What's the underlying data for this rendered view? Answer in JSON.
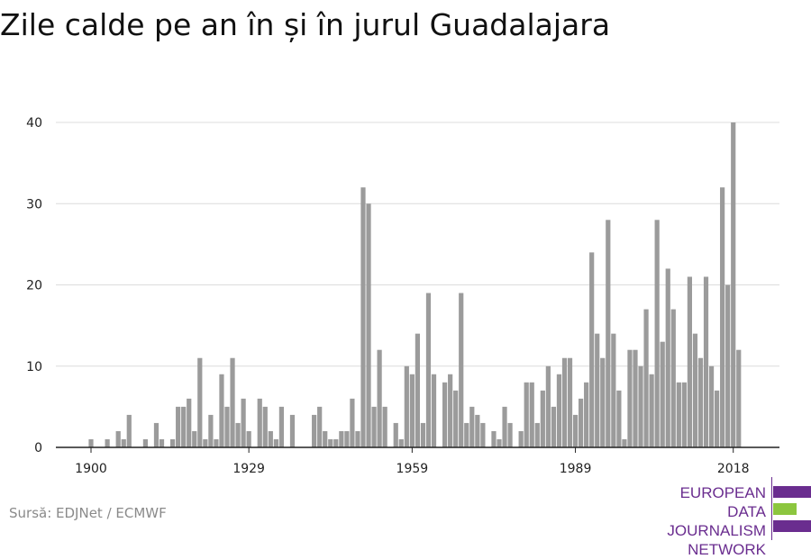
{
  "title": "Zile calde pe an în și în jurul Guadalajara",
  "source": "Sursă: EDJNet / ECMWF",
  "logo": {
    "lines": [
      "EUROPEAN",
      "DATA JOURNALISM",
      "NETWORK"
    ]
  },
  "colors": {
    "bar": "#9b9b9b",
    "grid": "#dcdcdc",
    "axis": "#222222",
    "brand": "#6a2d8f",
    "brand_accent": "#8cc63f"
  },
  "chart_data": {
    "type": "bar",
    "title": "Zile calde pe an în și în jurul Guadalajara",
    "xlabel": "",
    "ylabel": "",
    "ylim": [
      0,
      40
    ],
    "yticks": [
      0,
      10,
      20,
      30,
      40
    ],
    "xticks": [
      1900,
      1929,
      1959,
      1989,
      2018
    ],
    "grid": true,
    "x": [
      1900,
      1901,
      1902,
      1903,
      1904,
      1905,
      1906,
      1907,
      1908,
      1909,
      1910,
      1911,
      1912,
      1913,
      1914,
      1915,
      1916,
      1917,
      1918,
      1919,
      1920,
      1921,
      1922,
      1923,
      1924,
      1925,
      1926,
      1927,
      1928,
      1929,
      1930,
      1931,
      1932,
      1933,
      1934,
      1935,
      1936,
      1937,
      1938,
      1939,
      1940,
      1941,
      1942,
      1943,
      1944,
      1945,
      1946,
      1947,
      1948,
      1949,
      1950,
      1951,
      1952,
      1953,
      1954,
      1955,
      1956,
      1957,
      1958,
      1959,
      1960,
      1961,
      1962,
      1963,
      1964,
      1965,
      1966,
      1967,
      1968,
      1969,
      1970,
      1971,
      1972,
      1973,
      1974,
      1975,
      1976,
      1977,
      1978,
      1979,
      1980,
      1981,
      1982,
      1983,
      1984,
      1985,
      1986,
      1987,
      1988,
      1989,
      1990,
      1991,
      1992,
      1993,
      1994,
      1995,
      1996,
      1997,
      1998,
      1999,
      2000,
      2001,
      2002,
      2003,
      2004,
      2005,
      2006,
      2007,
      2008,
      2009,
      2010,
      2011,
      2012,
      2013,
      2014,
      2015,
      2016,
      2017,
      2018,
      2019
    ],
    "values": [
      1,
      0,
      0,
      1,
      0,
      2,
      1,
      4,
      0,
      0,
      1,
      0,
      3,
      1,
      0,
      1,
      5,
      5,
      6,
      2,
      11,
      1,
      4,
      1,
      9,
      5,
      11,
      3,
      6,
      2,
      0,
      6,
      5,
      2,
      1,
      5,
      0,
      4,
      0,
      0,
      0,
      4,
      5,
      2,
      1,
      1,
      2,
      2,
      6,
      2,
      32,
      30,
      5,
      12,
      5,
      0,
      3,
      1,
      10,
      9,
      14,
      3,
      19,
      9,
      0,
      8,
      9,
      7,
      19,
      3,
      5,
      4,
      3,
      0,
      2,
      1,
      5,
      3,
      0,
      2,
      8,
      8,
      3,
      7,
      10,
      5,
      9,
      11,
      11,
      4,
      6,
      8,
      24,
      14,
      11,
      28,
      14,
      7,
      1,
      12,
      12,
      10,
      17,
      9,
      28,
      13,
      22,
      17,
      8,
      8,
      21,
      14,
      11,
      21,
      10,
      7,
      32,
      20,
      40,
      12
    ]
  }
}
